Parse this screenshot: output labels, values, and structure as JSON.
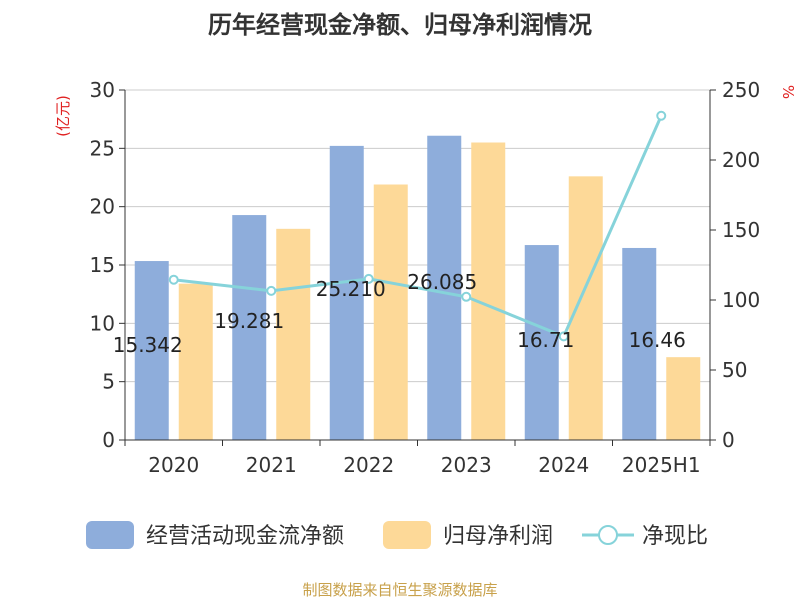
{
  "chart_data": {
    "type": "bar",
    "title": "历年经营现金净额、归母净利润情况",
    "categories": [
      "2020",
      "2021",
      "2022",
      "2023",
      "2024",
      "2025H1"
    ],
    "series": [
      {
        "name": "经营活动现金流净额",
        "kind": "bar",
        "axis": "left",
        "color": "#8EADDB",
        "values": [
          15.34,
          19.28,
          25.21,
          26.08,
          16.71,
          16.46
        ]
      },
      {
        "name": "归母净利润",
        "kind": "bar",
        "axis": "left",
        "color": "#FDD998",
        "values": [
          13.4,
          18.1,
          21.9,
          25.5,
          22.6,
          7.1
        ]
      },
      {
        "name": "净现比",
        "kind": "line",
        "axis": "right",
        "color": "#86D3DA",
        "values": [
          114.5,
          106.5,
          115.1,
          102.3,
          74.0,
          231.6
        ]
      }
    ],
    "data_labels": [
      "15.342",
      "19.281",
      "25.210",
      "26.085",
      "16.71",
      "16.46"
    ],
    "ylabel_left": "(亿元)",
    "ylabel_right": "%",
    "ylim_left": [
      0,
      30
    ],
    "yticks_left": [
      "0",
      "5",
      "10",
      "15",
      "20",
      "25",
      "30"
    ],
    "ylim_right": [
      0,
      250
    ],
    "yticks_right": [
      "0",
      "50",
      "100",
      "150",
      "200",
      "250"
    ],
    "grid": true,
    "legend_position": "bottom",
    "source_note": "制图数据来自恒生聚源数据库",
    "colors": {
      "title": "#333333",
      "axis_label": "#E02020",
      "source": "#C8A14B",
      "grid": "#CCCCCC",
      "axis": "#333333"
    }
  }
}
